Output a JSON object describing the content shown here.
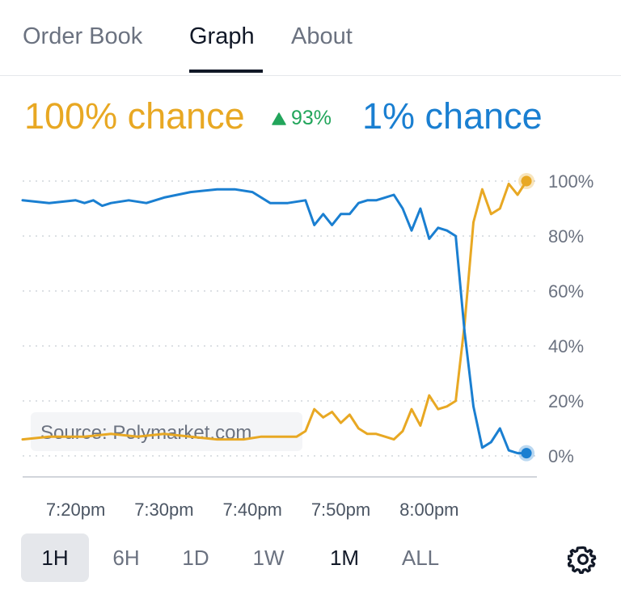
{
  "tabs": [
    {
      "label": "Order Book"
    },
    {
      "label": "Graph"
    },
    {
      "label": "About"
    }
  ],
  "headline": {
    "outcome_a": "100% chance",
    "delta": "93%",
    "outcome_b": "1% chance"
  },
  "colors": {
    "outcome_a": "#e8a823",
    "outcome_b": "#1a7fd1",
    "delta_up": "#22a55b"
  },
  "time_ranges": [
    {
      "label": "1H"
    },
    {
      "label": "6H"
    },
    {
      "label": "1D"
    },
    {
      "label": "1W"
    },
    {
      "label": "1M"
    },
    {
      "label": "ALL"
    }
  ],
  "active_range": "1H",
  "settings_icon": "gear-icon",
  "chart_data": {
    "type": "line",
    "title": "",
    "source_note": "Source: Polymarket.com",
    "y_ticks": [
      "100%",
      "80%",
      "60%",
      "40%",
      "20%",
      "0%"
    ],
    "x_ticks": [
      "7:20pm",
      "7:30pm",
      "7:40pm",
      "7:50pm",
      "8:00pm"
    ],
    "ylim": [
      0,
      100
    ],
    "xlim": [
      "7:14pm",
      "8:12pm"
    ],
    "grid": true,
    "series": [
      {
        "color": "#e8a823",
        "x": [
          "7:14pm",
          "7:17pm",
          "7:21pm",
          "7:24pm",
          "7:27pm",
          "7:30pm",
          "7:33pm",
          "7:36pm",
          "7:39pm",
          "7:41pm",
          "7:43pm",
          "7:45pm",
          "7:46pm",
          "7:47pm",
          "7:48pm",
          "7:49pm",
          "7:50pm",
          "7:51pm",
          "7:52pm",
          "7:53pm",
          "7:54pm",
          "7:55pm",
          "7:56pm",
          "7:57pm",
          "7:58pm",
          "7:59pm",
          "8:00pm",
          "8:01pm",
          "8:02pm",
          "8:03pm",
          "8:04pm",
          "8:05pm",
          "8:06pm",
          "8:07pm",
          "8:08pm",
          "8:09pm",
          "8:10pm",
          "8:11pm"
        ],
        "values": [
          6,
          7,
          7,
          8,
          7,
          8,
          7,
          6,
          6,
          7,
          7,
          7,
          9,
          17,
          14,
          16,
          12,
          15,
          10,
          8,
          8,
          7,
          6,
          9,
          17,
          11,
          22,
          17,
          18,
          20,
          48,
          85,
          97,
          88,
          90,
          99,
          95,
          100
        ]
      },
      {
        "color": "#1a7fd1",
        "x": [
          "7:14pm",
          "7:17pm",
          "7:20pm",
          "7:21pm",
          "7:22pm",
          "7:23pm",
          "7:24pm",
          "7:26pm",
          "7:28pm",
          "7:30pm",
          "7:33pm",
          "7:36pm",
          "7:38pm",
          "7:40pm",
          "7:42pm",
          "7:44pm",
          "7:46pm",
          "7:47pm",
          "7:48pm",
          "7:49pm",
          "7:50pm",
          "7:51pm",
          "7:52pm",
          "7:53pm",
          "7:54pm",
          "7:55pm",
          "7:56pm",
          "7:57pm",
          "7:58pm",
          "7:59pm",
          "8:00pm",
          "8:01pm",
          "8:02pm",
          "8:03pm",
          "8:04pm",
          "8:05pm",
          "8:06pm",
          "8:07pm",
          "8:08pm",
          "8:09pm",
          "8:10pm",
          "8:11pm"
        ],
        "values": [
          93,
          92,
          93,
          92,
          93,
          91,
          92,
          93,
          92,
          94,
          96,
          97,
          97,
          96,
          92,
          92,
          93,
          84,
          88,
          84,
          88,
          88,
          92,
          93,
          93,
          94,
          95,
          90,
          82,
          90,
          79,
          83,
          82,
          80,
          45,
          18,
          3,
          5,
          10,
          2,
          1,
          1
        ]
      }
    ]
  }
}
